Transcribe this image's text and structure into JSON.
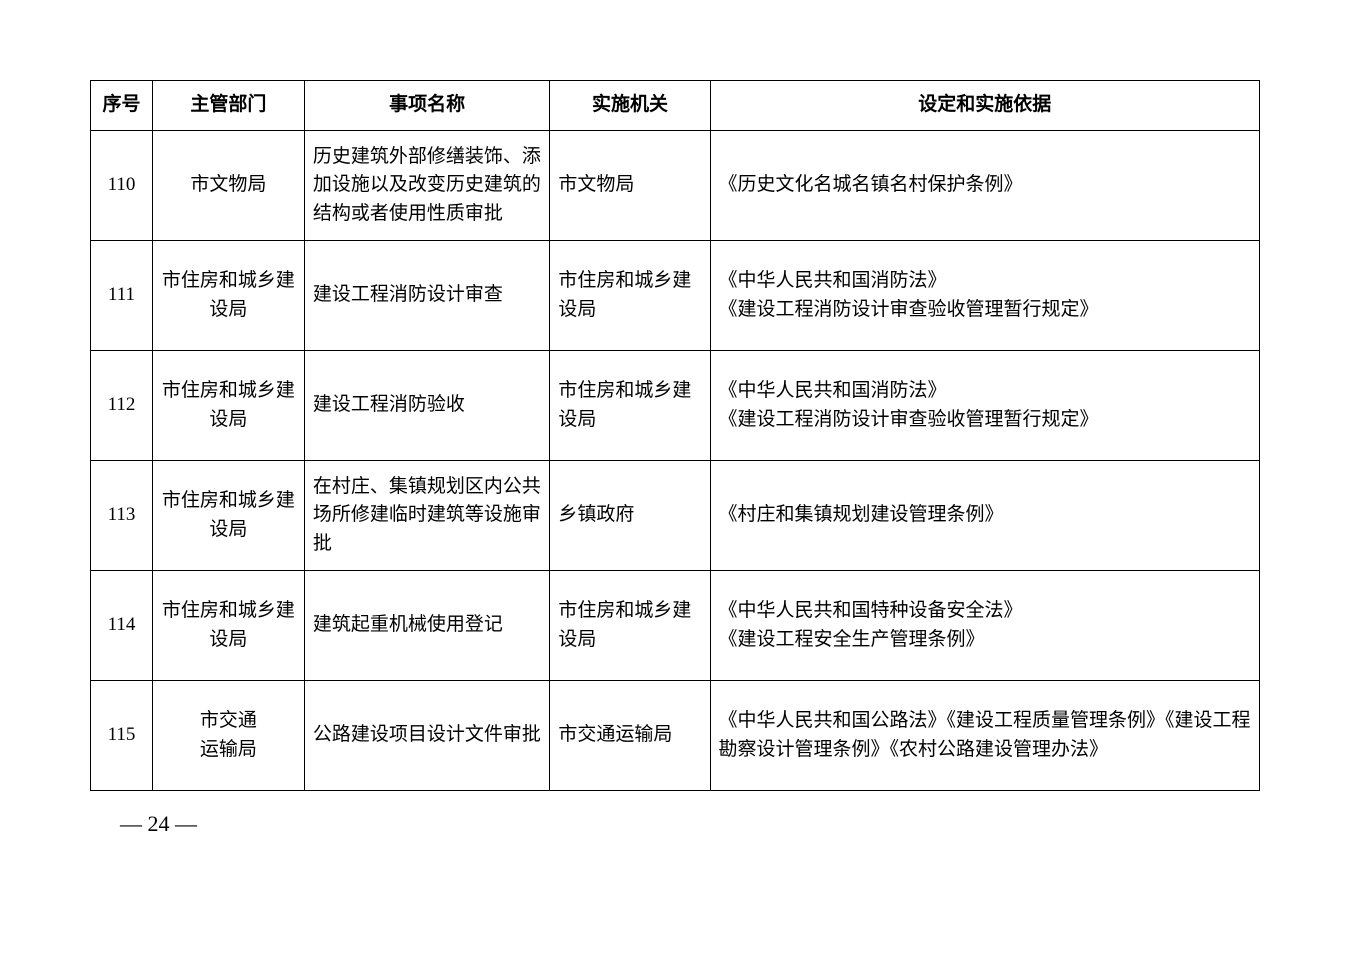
{
  "table": {
    "columns": [
      "序号",
      "主管部门",
      "事项名称",
      "实施机关",
      "设定和实施依据"
    ],
    "column_widths_pct": [
      5.3,
      13,
      21,
      13.7,
      47
    ],
    "border_color": "#000000",
    "font_size_pt": 14,
    "header_font_weight": "bold",
    "rows": [
      {
        "seq": "110",
        "dept": "市文物局",
        "item": "历史建筑外部修缮装饰、添加设施以及改变历史建筑的结构或者使用性质审批",
        "agency": "市文物局",
        "basis": "《历史文化名城名镇名村保护条例》"
      },
      {
        "seq": "111",
        "dept": "市住房和城乡建设局",
        "item": "建设工程消防设计审查",
        "agency": "市住房和城乡建设局",
        "basis": "《中华人民共和国消防法》\n《建设工程消防设计审查验收管理暂行规定》"
      },
      {
        "seq": "112",
        "dept": "市住房和城乡建设局",
        "item": "建设工程消防验收",
        "agency": "市住房和城乡建设局",
        "basis": "《中华人民共和国消防法》\n《建设工程消防设计审查验收管理暂行规定》"
      },
      {
        "seq": "113",
        "dept": "市住房和城乡建设局",
        "item": "在村庄、集镇规划区内公共场所修建临时建筑等设施审批",
        "agency": "乡镇政府",
        "basis": "《村庄和集镇规划建设管理条例》"
      },
      {
        "seq": "114",
        "dept": "市住房和城乡建设局",
        "item": "建筑起重机械使用登记",
        "agency": "市住房和城乡建设局",
        "basis": "《中华人民共和国特种设备安全法》\n《建设工程安全生产管理条例》"
      },
      {
        "seq": "115",
        "dept": "市交通\n运输局",
        "item": "公路建设项目设计文件审批",
        "agency": "市交通运输局",
        "basis": "《中华人民共和国公路法》《建设工程质量管理条例》《建设工程勘察设计管理条例》《农村公路建设管理办法》"
      }
    ]
  },
  "page_number": "— 24 —",
  "background_color": "#ffffff",
  "text_color": "#000000"
}
